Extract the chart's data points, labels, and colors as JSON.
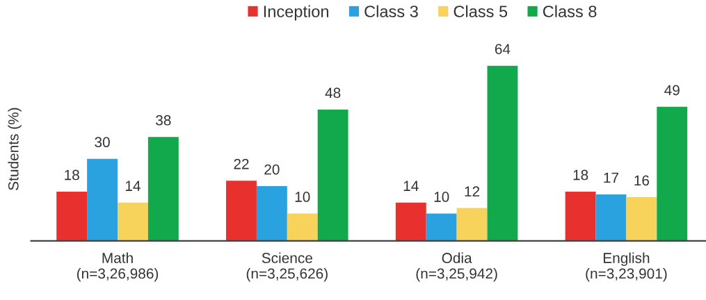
{
  "chart_data": {
    "type": "bar",
    "ylabel": "Students (%)",
    "categories": [
      "Math\n(n=3,26,986)",
      "Science\n(n=3,25,626)",
      "Odia\n(n=3,25,942)",
      "English\n(n=3,23,901)"
    ],
    "series": [
      {
        "name": "Inception",
        "color": "#e8302f",
        "values": [
          18,
          22,
          14,
          18
        ]
      },
      {
        "name": "Class 3",
        "color": "#2ba2e0",
        "values": [
          30,
          20,
          10,
          17
        ]
      },
      {
        "name": "Class 5",
        "color": "#f8d35b",
        "values": [
          14,
          10,
          12,
          16
        ]
      },
      {
        "name": "Class 8",
        "color": "#12a84c",
        "values": [
          38,
          48,
          64,
          49
        ]
      }
    ],
    "tick_labels": "x",
    "data_labels": true,
    "legend": "top",
    "grid": false
  }
}
